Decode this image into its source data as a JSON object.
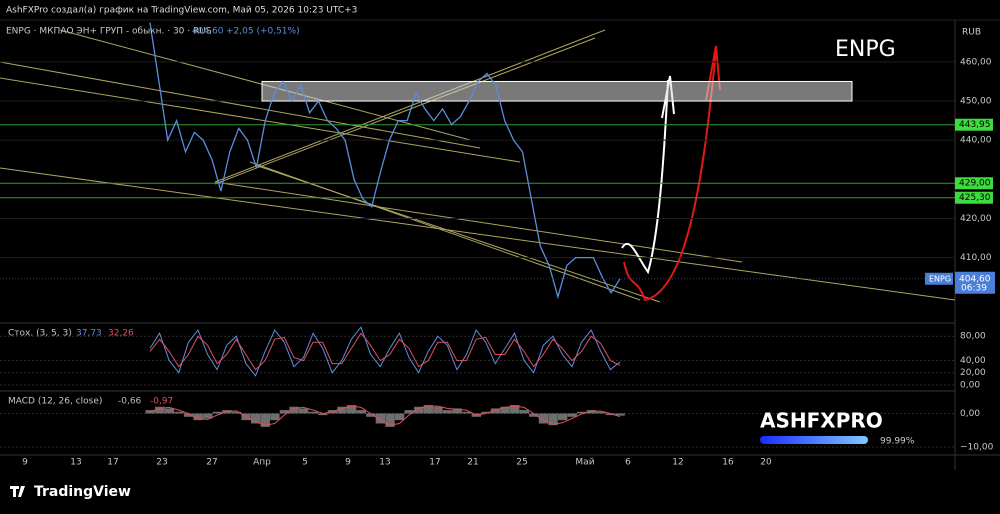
{
  "header": "AshFXPro создал(а) график на TradingView.com, Май 05, 2026 10:23 UTC+3",
  "footer": "TradingView",
  "logo": {
    "text": "ASHFXPRO",
    "percent": "99.99%"
  },
  "chart_data": [
    {
      "type": "line",
      "title": "ENPG · МКПАО ЭН+ ГРУП - обыкн. · 30 · RUS",
      "last": "404,60",
      "change": "+2,05 (+0,51%)",
      "watermark": "ENPG",
      "currency": "RUB",
      "symbol": "ENPG",
      "price_label": {
        "value": 404.6,
        "label": "404,60",
        "timer": "06:39"
      },
      "x_labels": [
        "9",
        "13",
        "17",
        "23",
        "27",
        "Апр",
        "5",
        "9",
        "13",
        "17",
        "21",
        "25",
        "Май",
        "6",
        "12",
        "16",
        "20"
      ],
      "color": "#5b8dde",
      "values": [
        470,
        455,
        440,
        445,
        437,
        442,
        440,
        435,
        427,
        437,
        443,
        440,
        433,
        445,
        452,
        455,
        450,
        454,
        447,
        450,
        445,
        443,
        440,
        430,
        425,
        423,
        432,
        440,
        445,
        445,
        452,
        448,
        445,
        448,
        444,
        446,
        450,
        455,
        457,
        454,
        445,
        440,
        437,
        425,
        413,
        408,
        400,
        408,
        410,
        410,
        410,
        405,
        401,
        404.6
      ],
      "ylim": [
        393.3,
        470.7
      ],
      "yticks": [
        {
          "value": 460,
          "label": "460,00"
        },
        {
          "value": 450,
          "label": "450,00"
        },
        {
          "value": 440,
          "label": "440,00"
        },
        {
          "value": 420,
          "label": "420,00"
        },
        {
          "value": 410,
          "label": "410,00"
        }
      ],
      "levels": [
        {
          "value": 443.95,
          "label": "443,95"
        },
        {
          "value": 429,
          "label": "429,00"
        },
        {
          "value": 425.3,
          "label": "425,30"
        }
      ],
      "zone": [
        450,
        455
      ]
    },
    {
      "type": "stochastic",
      "title": "Стох. (3, 5, 3)",
      "series": [
        {
          "name": "37,73",
          "color": "#5b8dde",
          "values": [
            60,
            85,
            40,
            20,
            70,
            90,
            50,
            25,
            65,
            80,
            35,
            15,
            55,
            90,
            70,
            30,
            45,
            85,
            60,
            20,
            40,
            75,
            95,
            50,
            30,
            60,
            85,
            45,
            20,
            55,
            80,
            65,
            25,
            50,
            90,
            70,
            35,
            60,
            85,
            40,
            20,
            65,
            80,
            50,
            30,
            70,
            90,
            55,
            25,
            37.73
          ]
        },
        {
          "name": "32,26",
          "color": "#e0505a",
          "values": [
            55,
            75,
            55,
            30,
            50,
            80,
            65,
            35,
            50,
            75,
            50,
            25,
            40,
            75,
            78,
            45,
            40,
            70,
            70,
            35,
            35,
            60,
            85,
            65,
            40,
            50,
            75,
            60,
            30,
            40,
            70,
            70,
            40,
            40,
            75,
            78,
            50,
            50,
            75,
            55,
            30,
            50,
            75,
            60,
            40,
            55,
            80,
            68,
            40,
            32.26
          ]
        }
      ],
      "ylim": [
        -10,
        101.7
      ],
      "yticks": [
        {
          "value": 80,
          "label": "80,00"
        },
        {
          "value": 40,
          "label": "40,00"
        },
        {
          "value": 20,
          "label": "20,00"
        },
        {
          "value": 0,
          "label": "0,00"
        }
      ]
    },
    {
      "type": "macd",
      "title": "MACD (12, 26, close)",
      "series": [
        {
          "name": "-0,66",
          "color": "#9a9a9a",
          "values": [
            1,
            2,
            1.5,
            0.5,
            -1,
            -2,
            -1.5,
            0.5,
            1,
            0.5,
            -2,
            -3,
            -4,
            -2,
            1,
            2,
            1.5,
            0.5,
            -0.5,
            1,
            2,
            2.5,
            1,
            -1,
            -3,
            -4,
            -2,
            1,
            2,
            2.5,
            2,
            1,
            1.5,
            0.5,
            -1,
            0.5,
            1.5,
            2,
            2.5,
            1,
            -1,
            -3,
            -3.5,
            -2,
            -1,
            0.5,
            1,
            0.5,
            -0.5,
            -0.66
          ]
        },
        {
          "name": "-0,97",
          "color": "#e0505a",
          "values": [
            0.5,
            1.5,
            1.8,
            1,
            0,
            -1.5,
            -1.8,
            -0.5,
            0.5,
            0.8,
            -1,
            -2.5,
            -3.5,
            -3,
            -0.5,
            1.5,
            1.8,
            1,
            0,
            0.5,
            1.5,
            2.2,
            1.8,
            0,
            -2,
            -3.5,
            -3,
            -0.5,
            1.5,
            2.2,
            2.2,
            1.5,
            1.2,
            1,
            -0.5,
            0,
            1,
            1.8,
            2.2,
            1.8,
            0,
            -2,
            -3.2,
            -2.8,
            -1.5,
            -0.2,
            0.7,
            0.7,
            0,
            -0.97
          ]
        }
      ],
      "ylim": [
        -12.4,
        6.7
      ],
      "yticks": [
        {
          "value": 0,
          "label": "0,00"
        },
        {
          "value": -10,
          "label": "−10,00"
        }
      ]
    }
  ]
}
